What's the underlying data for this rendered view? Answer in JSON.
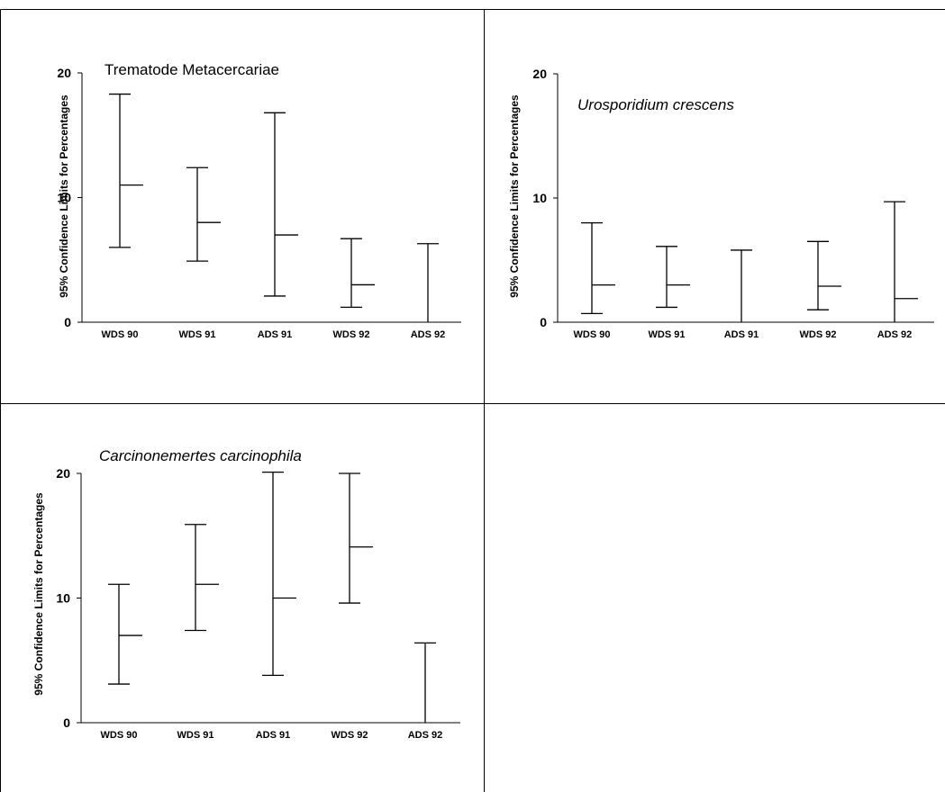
{
  "figure": {
    "ylabel": "95% Confidence Limits for Percentages"
  },
  "chart_data": [
    {
      "type": "error-bar",
      "title": "Trematode Metacercariae",
      "title_italic": false,
      "ylabel": "95% Confidence Limits for Percentages",
      "ylim": [
        0,
        20
      ],
      "yticks": [
        0,
        10,
        20
      ],
      "categories": [
        "WDS 90",
        "WDS 91",
        "ADS 91",
        "WDS 92",
        "ADS 92"
      ],
      "estimate": [
        11.0,
        8.0,
        7.0,
        3.0,
        null
      ],
      "lower": [
        6.0,
        4.9,
        2.1,
        1.2,
        0.0
      ],
      "upper": [
        18.3,
        12.4,
        16.8,
        6.7,
        6.3
      ]
    },
    {
      "type": "error-bar",
      "title": "Urosporidium crescens",
      "title_italic": true,
      "ylabel": "95% Confidence Limits for Percentages",
      "ylim": [
        0,
        20
      ],
      "yticks": [
        0,
        10,
        20
      ],
      "categories": [
        "WDS 90",
        "WDS 91",
        "ADS 91",
        "WDS 92",
        "ADS 92"
      ],
      "estimate": [
        3.0,
        3.0,
        null,
        2.9,
        1.9
      ],
      "lower": [
        0.7,
        1.2,
        0.0,
        1.0,
        0.0
      ],
      "upper": [
        8.0,
        6.1,
        5.8,
        6.5,
        9.7
      ]
    },
    {
      "type": "error-bar",
      "title": "Carcinonemertes  carcinophila",
      "title_italic": true,
      "ylabel": "95% Confidence Limits for Percentages",
      "ylim": [
        0,
        20
      ],
      "yticks": [
        0,
        10,
        20
      ],
      "categories": [
        "WDS 90",
        "WDS 91",
        "ADS 91",
        "WDS 92",
        "ADS 92"
      ],
      "estimate": [
        7.0,
        11.1,
        10.0,
        14.1,
        null
      ],
      "lower": [
        3.1,
        7.4,
        3.8,
        9.6,
        0.0
      ],
      "upper": [
        11.1,
        15.9,
        20.1,
        20.0,
        6.4
      ]
    }
  ]
}
